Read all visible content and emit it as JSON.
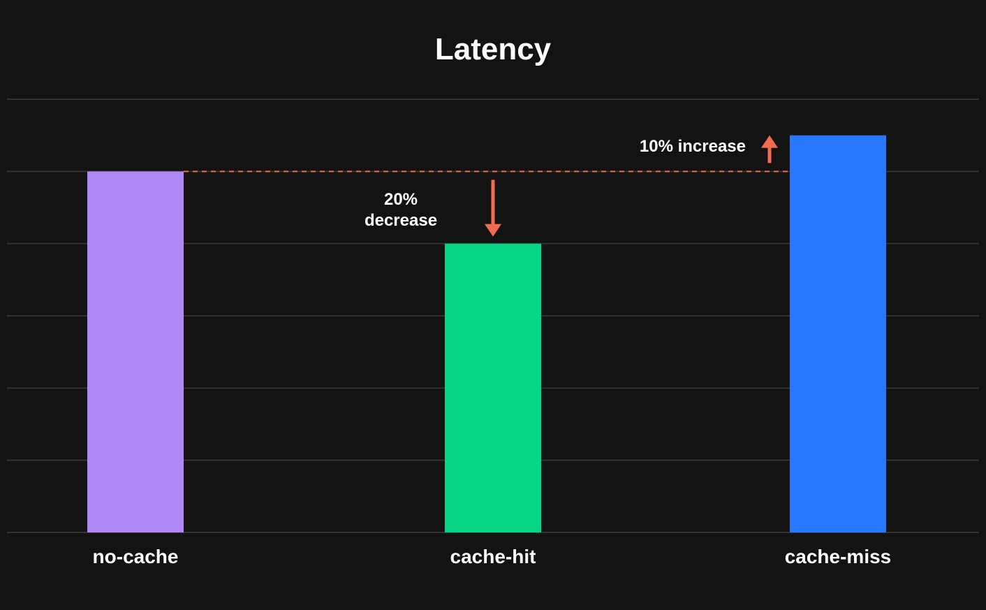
{
  "chart_data": {
    "type": "bar",
    "title": "Latency",
    "xlabel": "",
    "ylabel": "",
    "categories": [
      "no-cache",
      "cache-hit",
      "cache-miss"
    ],
    "values": [
      100,
      80,
      110
    ],
    "ylim": [
      0,
      120
    ],
    "grid": true,
    "colors": [
      "#b088f5",
      "#05d585",
      "#2878fd"
    ],
    "background": "#131313",
    "gridline_color": "#333333",
    "reference_line": {
      "value": 100,
      "color": "#f26a4f",
      "style": "dashed"
    },
    "annotations": [
      {
        "id": "decrease",
        "lines": [
          "20%",
          "decrease"
        ],
        "target_category": "cache-hit",
        "direction": "down",
        "color": "#f26a4f"
      },
      {
        "id": "increase",
        "lines": [
          "10% increase"
        ],
        "target_category": "cache-miss",
        "direction": "up",
        "color": "#f26a4f"
      }
    ]
  }
}
